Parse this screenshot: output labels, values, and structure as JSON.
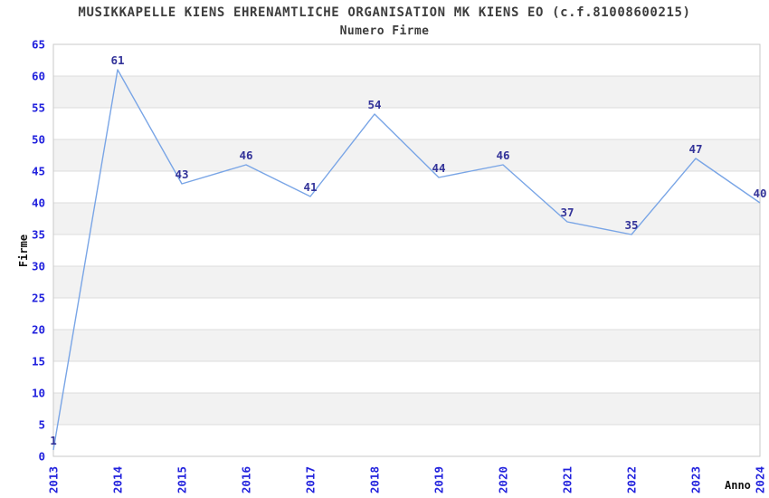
{
  "header": {
    "title": "MUSIKKAPELLE KIENS EHRENAMTLICHE ORGANISATION MK KIENS EO (c.f.81008600215)",
    "subtitle": "Numero Firme"
  },
  "axes": {
    "y_label": "Firme",
    "x_label": "Anno"
  },
  "colors": {
    "line": "#79a5e6",
    "data_label": "#333399",
    "tick_label": "#2222dd",
    "band": "#f2f2f2",
    "gridline": "#dcdcdc",
    "plot_border": "#c9c9c9",
    "title_text": "#3d3d3d",
    "axis_label_text": "#111111",
    "background": "#ffffff"
  },
  "chart_data": {
    "type": "line",
    "title": "MUSIKKAPELLE KIENS EHRENAMTLICHE ORGANISATION MK KIENS EO (c.f.81008600215)",
    "subtitle": "Numero Firme",
    "xlabel": "Anno",
    "ylabel": "Firme",
    "categories": [
      "2013",
      "2014",
      "2015",
      "2016",
      "2017",
      "2018",
      "2019",
      "2020",
      "2021",
      "2022",
      "2023",
      "2024"
    ],
    "values": [
      1,
      61,
      43,
      46,
      41,
      54,
      44,
      46,
      37,
      35,
      47,
      40
    ],
    "point_labels": [
      "1",
      "61",
      "43",
      "46",
      "41",
      "54",
      "44",
      "46",
      "37",
      "35",
      "47",
      "40"
    ],
    "y_ticks": [
      0,
      5,
      10,
      15,
      20,
      25,
      30,
      35,
      40,
      45,
      50,
      55,
      60,
      65
    ],
    "ylim": [
      0,
      65
    ],
    "ytick_step": 5,
    "grid": "horizontal-gridlines-with-alternating-bands",
    "gray_bands": [
      [
        5,
        10
      ],
      [
        15,
        20
      ],
      [
        25,
        30
      ],
      [
        35,
        40
      ],
      [
        45,
        50
      ],
      [
        55,
        60
      ]
    ],
    "legend": "none",
    "line_color": "#79a5e6",
    "data_label_color": "#333399",
    "tick_label_color": "#2222dd"
  }
}
